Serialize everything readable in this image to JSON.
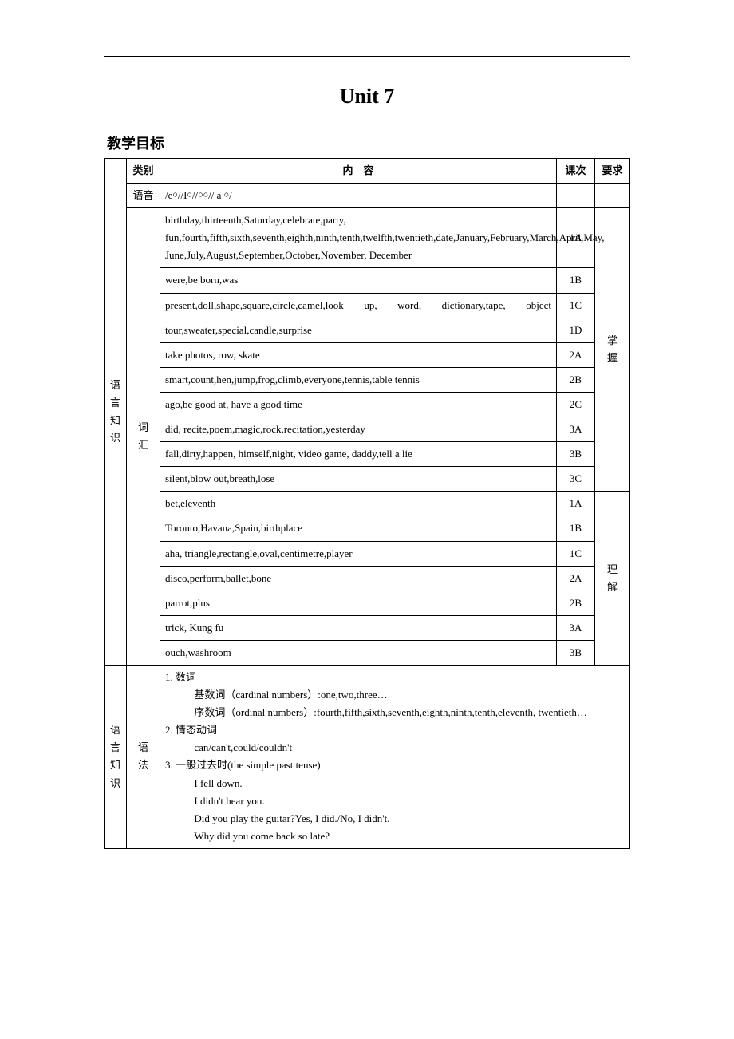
{
  "title": "Unit 7",
  "heading": "教学目标",
  "headers": {
    "category": "类别",
    "content": "内　容",
    "lesson": "课次",
    "requirement": "要求"
  },
  "section1_label": "语言知识",
  "section2_label": "语言知识",
  "phonetics_label": "语音",
  "phonetics_content": "/e￮//I￮//￮￮// a ￮/",
  "vocab_label": "词汇",
  "vocab_master_label": "掌握",
  "vocab_understand_label": "理解",
  "vocab_master": [
    {
      "content": "birthday,thirteenth,Saturday,celebrate,party, fun,fourth,fifth,sixth,seventh,eighth,ninth,tenth,twelfth,twentieth,date,January,February,March,April,May, June,July,August,September,October,November, December",
      "lesson": "1A"
    },
    {
      "content": "were,be born,was",
      "lesson": "1B"
    },
    {
      "content": "present,doll,shape,square,circle,camel,look up, word, dictionary,tape, object",
      "lesson": "1C"
    },
    {
      "content": "tour,sweater,special,candle,surprise",
      "lesson": "1D"
    },
    {
      "content": "take photos, row, skate",
      "lesson": "2A"
    },
    {
      "content": "smart,count,hen,jump,frog,climb,everyone,tennis,table tennis",
      "lesson": "2B"
    },
    {
      "content": "ago,be good at, have a good time",
      "lesson": "2C"
    },
    {
      "content": "did, recite,poem,magic,rock,recitation,yesterday",
      "lesson": "3A"
    },
    {
      "content": "fall,dirty,happen, himself,night, video game, daddy,tell a lie",
      "lesson": "3B"
    },
    {
      "content": "silent,blow out,breath,lose",
      "lesson": "3C"
    }
  ],
  "vocab_understand": [
    {
      "content": "bet,eleventh",
      "lesson": "1A"
    },
    {
      "content": "Toronto,Havana,Spain,birthplace",
      "lesson": "1B"
    },
    {
      "content": "aha, triangle,rectangle,oval,centimetre,player",
      "lesson": "1C"
    },
    {
      "content": "disco,perform,ballet,bone",
      "lesson": "2A"
    },
    {
      "content": "parrot,plus",
      "lesson": "2B"
    },
    {
      "content": "trick, Kung fu",
      "lesson": "3A"
    },
    {
      "content": "ouch,washroom",
      "lesson": "3B"
    }
  ],
  "grammar_label": "语法",
  "grammar": {
    "item1_h": "1. 数词",
    "item1_a": "基数词（cardinal numbers）:one,two,three…",
    "item1_b": "序数词（ordinal numbers）:fourth,fifth,sixth,seventh,eighth,ninth,tenth,eleventh, twentieth…",
    "item2_h": "2. 情态动词",
    "item2_a": "can/can't,could/couldn't",
    "item3_h": "3. 一般过去时(the simple past tense)",
    "item3_a": "I fell down.",
    "item3_b": "I didn't hear you.",
    "item3_c": "Did you play the guitar?Yes, I did./No, I didn't.",
    "item3_d": "Why did you come back so late?"
  }
}
